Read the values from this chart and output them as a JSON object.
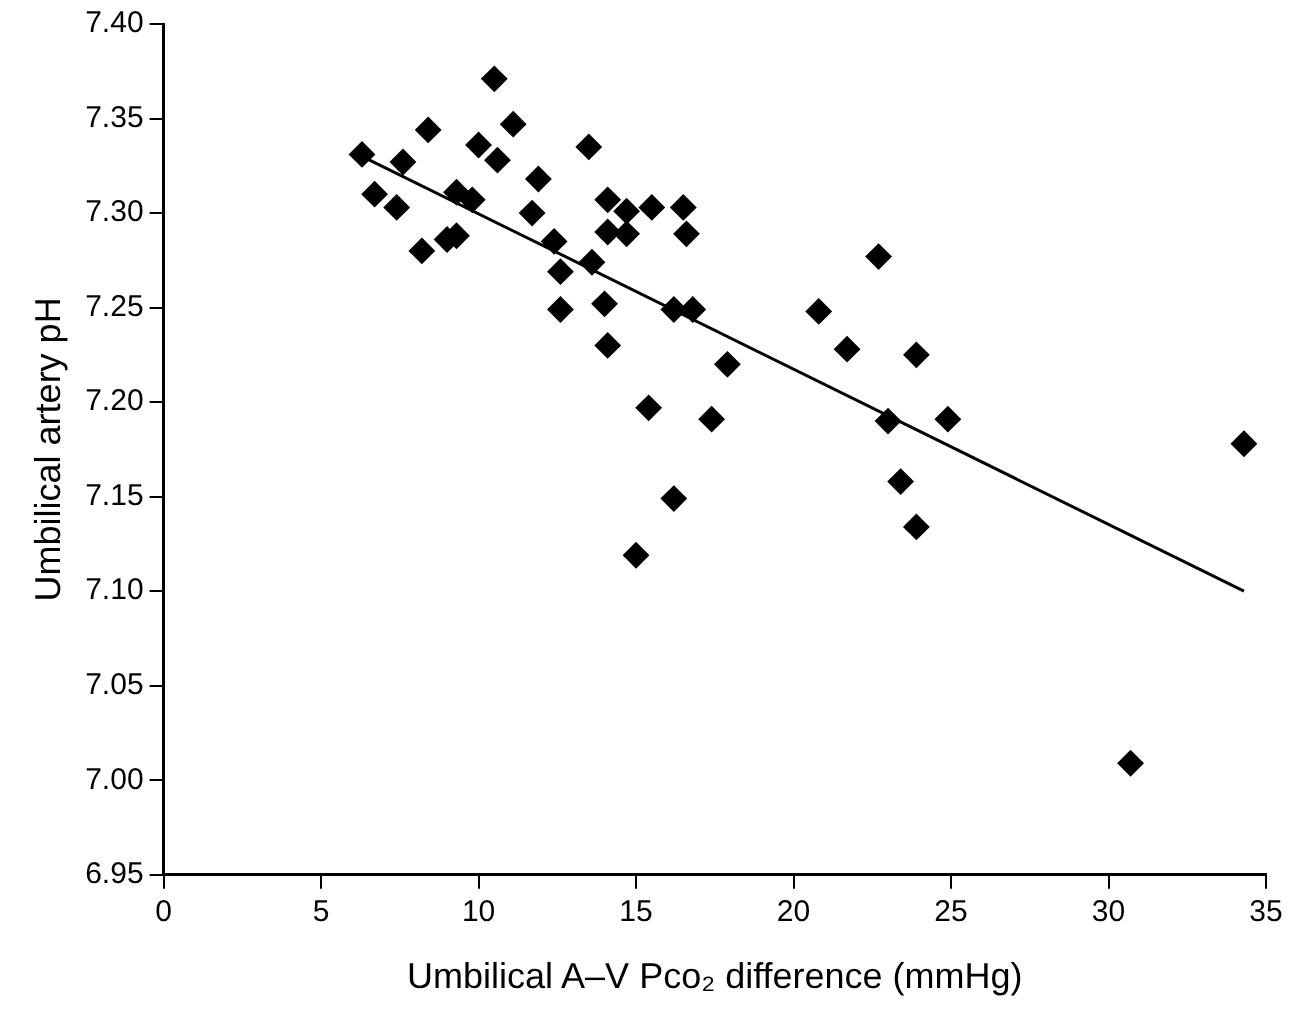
{
  "chart_data": {
    "type": "scatter",
    "xlabel": "Umbilical A–V Pco₂ difference (mmHg)",
    "ylabel": "Umbilical artery pH",
    "xlim": [
      0,
      35
    ],
    "xticks": [
      0,
      5,
      10,
      15,
      20,
      25,
      30,
      35
    ],
    "ylim": [
      6.95,
      7.4
    ],
    "yticks": [
      {
        "value": 6.95,
        "label": "6.95"
      },
      {
        "value": 7.0,
        "label": "7.00"
      },
      {
        "value": 7.05,
        "label": "7.05"
      },
      {
        "value": 7.1,
        "label": "7.10"
      },
      {
        "value": 7.15,
        "label": "7.15"
      },
      {
        "value": 7.2,
        "label": "7.20"
      },
      {
        "value": 7.25,
        "label": "7.25"
      },
      {
        "value": 7.3,
        "label": "7.30"
      },
      {
        "value": 7.35,
        "label": "7.35"
      },
      {
        "value": 7.4,
        "label": "7.40"
      }
    ],
    "grid": false,
    "legend": false,
    "series": [
      {
        "marker": "diamond",
        "color": "#000000",
        "x": [
          6.3,
          7.6,
          8.4,
          10.0,
          10.5,
          11.1,
          10.6,
          6.7,
          7.4,
          8.2,
          9.0,
          9.3,
          9.3,
          9.8,
          11.9,
          11.7,
          12.4,
          12.6,
          12.6,
          13.6,
          13.5,
          14.1,
          14.7,
          15.5,
          14.1,
          14.7,
          14.0,
          14.1,
          16.2,
          15.4,
          16.2,
          15.0,
          20.8,
          21.7,
          23.9,
          23.0,
          24.9,
          23.4,
          23.9,
          34.3,
          30.7,
          17.9,
          17.4,
          16.8,
          16.5,
          16.6,
          22.7
        ],
        "values": [
          7.331,
          7.327,
          7.344,
          7.336,
          7.371,
          7.347,
          7.328,
          7.31,
          7.303,
          7.28,
          7.286,
          7.288,
          7.311,
          7.307,
          7.318,
          7.3,
          7.285,
          7.269,
          7.249,
          7.274,
          7.335,
          7.307,
          7.301,
          7.303,
          7.29,
          7.289,
          7.252,
          7.23,
          7.249,
          7.197,
          7.149,
          7.119,
          7.248,
          7.228,
          7.225,
          7.19,
          7.191,
          7.158,
          7.134,
          7.178,
          7.009,
          7.22,
          7.191,
          7.249,
          7.303,
          7.289,
          7.277
        ]
      },
      {
        "type": "line",
        "marker": "none",
        "color": "#000000",
        "x": [
          6.3,
          34.3
        ],
        "values": [
          7.33,
          7.1
        ]
      }
    ]
  }
}
